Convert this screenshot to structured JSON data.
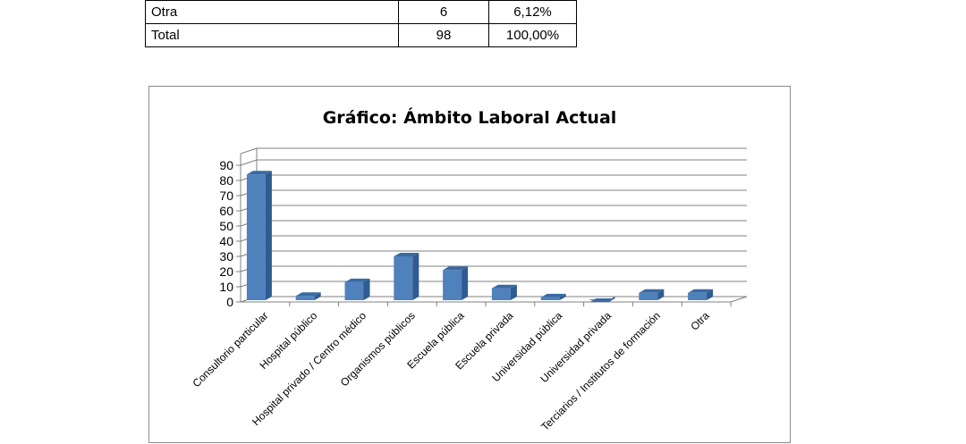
{
  "table": {
    "rows": [
      {
        "label": "Otra",
        "count": "6",
        "pct": "6,12%"
      },
      {
        "label": "Total",
        "count": "98",
        "pct": "100,00%"
      }
    ]
  },
  "chart_data": {
    "type": "bar",
    "title": "Gráfico: Ámbito Laboral Actual",
    "xlabel": "",
    "ylabel": "",
    "ylim": [
      0,
      90
    ],
    "yticks": [
      "0",
      "10",
      "20",
      "30",
      "40",
      "50",
      "60",
      "70",
      "80",
      "90"
    ],
    "categories": [
      "Consultorio particular",
      "Hospital público",
      "Hospital privado / Centro médico",
      "Organismos públicos",
      "Escuela pública",
      "Escuela privada",
      "Universidad pública",
      "Universidad privada",
      "Terciarios / Institutos de formación",
      "Otra"
    ],
    "values": [
      84,
      4,
      13,
      30,
      21,
      9,
      3,
      0,
      6,
      6
    ],
    "bar_color": "#4f81bd",
    "grid": true,
    "style": "3d-column"
  }
}
